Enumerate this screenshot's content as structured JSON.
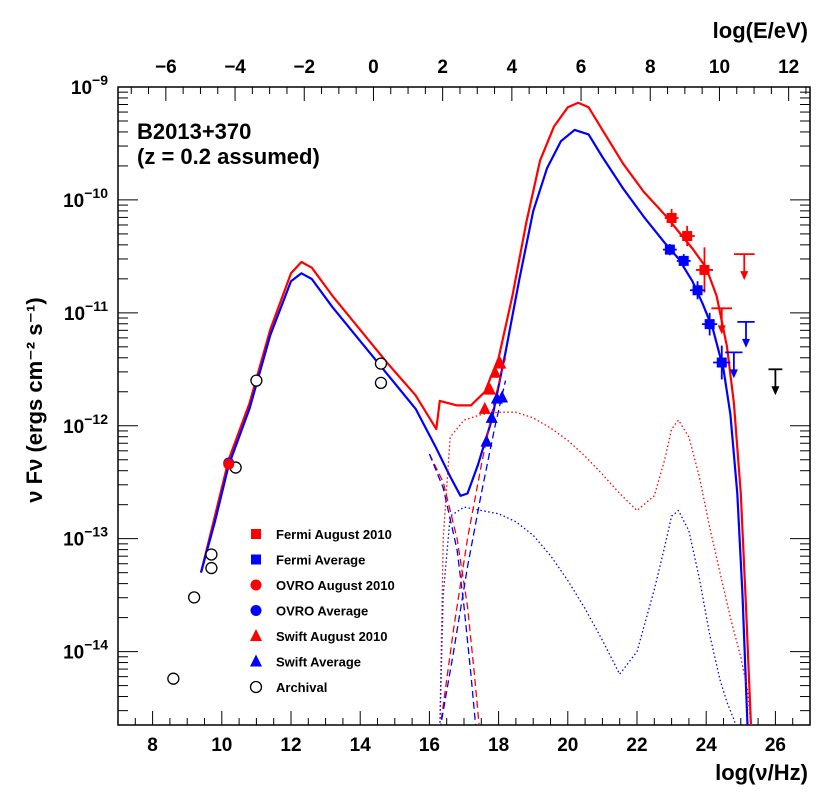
{
  "chart_data": {
    "type": "scatter",
    "annotation_lines": [
      "B2013+370",
      "(z = 0.2 assumed)"
    ],
    "xlabel": "log(ν/Hz)",
    "ylabel": "ν Fν (ergs cm⁻² s⁻¹)",
    "top_xlabel": "log(E/eV)",
    "xlim": [
      7,
      27
    ],
    "ylim_log10": [
      -14.65,
      -9.0
    ],
    "x_ticks": [
      8,
      10,
      12,
      14,
      16,
      18,
      20,
      22,
      24,
      26
    ],
    "y_ticks_log10": [
      -14,
      -13,
      -12,
      -11,
      -10,
      -9
    ],
    "top_ticks_logE": [
      -6,
      -4,
      -2,
      0,
      2,
      4,
      6,
      8,
      10,
      12
    ],
    "colors": {
      "august": "#ff0000",
      "average": "#0000ff",
      "archival": "#000000"
    },
    "legend": [
      {
        "label": "Fermi August 2010",
        "marker": "square",
        "color": "#ff0000"
      },
      {
        "label": "Fermi Average",
        "marker": "square",
        "color": "#0000ff"
      },
      {
        "label": "OVRO August 2010",
        "marker": "circle",
        "color": "#ff0000"
      },
      {
        "label": "OVRO Average",
        "marker": "circle",
        "color": "#0000ff"
      },
      {
        "label": "Swift August 2010",
        "marker": "triangle",
        "color": "#ff0000"
      },
      {
        "label": "Swift Average",
        "marker": "triangle",
        "color": "#0000ff"
      },
      {
        "label": "Archival",
        "marker": "open-circle",
        "color": "#000000"
      }
    ],
    "points": [
      {
        "series": "Archival",
        "x": 8.6,
        "y": -14.24
      },
      {
        "series": "Archival",
        "x": 9.2,
        "y": -13.52
      },
      {
        "series": "Archival",
        "x": 9.7,
        "y": -13.26
      },
      {
        "series": "Archival",
        "x": 9.7,
        "y": -13.14
      },
      {
        "series": "Archival",
        "x": 10.4,
        "y": -12.37
      },
      {
        "series": "Archival",
        "x": 11.0,
        "y": -11.6
      },
      {
        "series": "Archival",
        "x": 14.6,
        "y": -11.45
      },
      {
        "series": "Archival",
        "x": 14.6,
        "y": -11.62
      },
      {
        "series": "OVRO Average",
        "x": 10.2,
        "y": -12.33
      },
      {
        "series": "OVRO August 2010",
        "x": 10.2,
        "y": -12.34
      },
      {
        "series": "Swift August 2010",
        "x": 17.6,
        "y": -11.85
      },
      {
        "series": "Swift August 2010",
        "x": 17.75,
        "y": -11.68
      },
      {
        "series": "Swift August 2010",
        "x": 17.9,
        "y": -11.53
      },
      {
        "series": "Swift August 2010",
        "x": 18.05,
        "y": -11.45
      },
      {
        "series": "Swift Average",
        "x": 17.65,
        "y": -12.14
      },
      {
        "series": "Swift Average",
        "x": 17.8,
        "y": -11.93
      },
      {
        "series": "Swift Average",
        "x": 17.95,
        "y": -11.76
      },
      {
        "series": "Swift Average",
        "x": 18.1,
        "y": -11.75
      },
      {
        "series": "Fermi August 2010",
        "x": 23.0,
        "y": -10.16,
        "xerr": 0.2,
        "yerr": 0.08
      },
      {
        "series": "Fermi August 2010",
        "x": 23.45,
        "y": -10.32,
        "xerr": 0.22,
        "yerr": 0.09
      },
      {
        "series": "Fermi August 2010",
        "x": 23.95,
        "y": -10.62,
        "xerr": 0.25,
        "yerr": 0.2
      },
      {
        "series": "Fermi Average",
        "x": 22.95,
        "y": -10.44,
        "xerr": 0.2,
        "yerr": 0.05
      },
      {
        "series": "Fermi Average",
        "x": 23.35,
        "y": -10.54,
        "xerr": 0.2,
        "yerr": 0.06
      },
      {
        "series": "Fermi Average",
        "x": 23.75,
        "y": -10.8,
        "xerr": 0.22,
        "yerr": 0.08
      },
      {
        "series": "Fermi Average",
        "x": 24.1,
        "y": -11.1,
        "xerr": 0.22,
        "yerr": 0.1
      },
      {
        "series": "Fermi Average",
        "x": 24.45,
        "y": -11.44,
        "xerr": 0.25,
        "yerr": 0.15
      }
    ],
    "upper_limits": [
      {
        "series": "Fermi August 2010",
        "x": 24.45,
        "y": -10.96,
        "xerr": 0.3
      },
      {
        "series": "Fermi August 2010",
        "x": 25.1,
        "y": -10.48,
        "xerr": 0.3
      },
      {
        "series": "Fermi Average",
        "x": 24.8,
        "y": -11.35,
        "xerr": 0.25
      },
      {
        "series": "Fermi Average",
        "x": 25.15,
        "y": -11.08,
        "xerr": 0.25
      },
      {
        "series": "Archival",
        "x": 26.0,
        "y": -11.5,
        "xerr": 0.2
      }
    ],
    "curves": [
      {
        "name": "model-august-total",
        "color": "#ff0000",
        "style": "solid",
        "x": [
          9.4,
          9.8,
          10.2,
          10.8,
          11.4,
          12.0,
          12.3,
          12.6,
          13.2,
          14.0,
          14.8,
          15.6,
          16.2,
          16.3,
          16.8,
          17.2,
          17.6,
          18.0,
          18.4,
          18.8,
          19.2,
          19.6,
          20.0,
          20.3,
          20.6,
          21.0,
          21.6,
          22.2,
          22.8,
          23.2,
          23.6,
          24.0,
          24.3,
          24.6,
          24.8,
          25.0,
          25.15,
          25.3
        ],
        "y": [
          -13.3,
          -12.8,
          -12.3,
          -11.8,
          -11.15,
          -10.65,
          -10.55,
          -10.6,
          -10.85,
          -11.15,
          -11.45,
          -11.73,
          -12.03,
          -11.78,
          -11.82,
          -11.82,
          -11.7,
          -11.4,
          -10.85,
          -10.2,
          -9.65,
          -9.35,
          -9.18,
          -9.14,
          -9.18,
          -9.38,
          -9.68,
          -9.93,
          -10.13,
          -10.28,
          -10.43,
          -10.6,
          -10.85,
          -11.3,
          -11.8,
          -12.6,
          -13.6,
          -14.7
        ]
      },
      {
        "name": "model-average-total",
        "color": "#0000ff",
        "style": "solid",
        "x": [
          9.4,
          9.8,
          10.2,
          10.8,
          11.4,
          12.0,
          12.3,
          12.6,
          13.2,
          14.0,
          14.8,
          15.6,
          16.2,
          16.6,
          16.9,
          17.1,
          17.4,
          17.8,
          18.2,
          18.6,
          19.0,
          19.4,
          19.8,
          20.2,
          20.6,
          21.0,
          21.6,
          22.2,
          22.8,
          23.2,
          23.6,
          23.9,
          24.2,
          24.5,
          24.7,
          24.9,
          25.05,
          25.2
        ],
        "y": [
          -13.3,
          -12.85,
          -12.35,
          -11.85,
          -11.2,
          -10.72,
          -10.65,
          -10.7,
          -10.95,
          -11.25,
          -11.55,
          -11.85,
          -12.2,
          -12.45,
          -12.62,
          -12.6,
          -12.35,
          -11.95,
          -11.35,
          -10.7,
          -10.1,
          -9.72,
          -9.48,
          -9.38,
          -9.42,
          -9.62,
          -9.9,
          -10.15,
          -10.38,
          -10.52,
          -10.72,
          -10.92,
          -11.15,
          -11.5,
          -11.9,
          -12.6,
          -13.5,
          -14.7
        ]
      },
      {
        "name": "model-august-ssc",
        "color": "#ff0000",
        "style": "dotted",
        "x": [
          16.3,
          16.4,
          16.6,
          17.0,
          17.5,
          18.0,
          18.5,
          19.0,
          19.5,
          20.0,
          20.5,
          21.0,
          21.5,
          22.0,
          22.5,
          22.8,
          23.0,
          23.2,
          23.5,
          23.8,
          24.1,
          24.4,
          24.7,
          25.0,
          25.2,
          25.3
        ],
        "y": [
          -14.7,
          -13.0,
          -12.1,
          -11.95,
          -11.9,
          -11.88,
          -11.88,
          -11.93,
          -12.02,
          -12.13,
          -12.27,
          -12.43,
          -12.6,
          -12.75,
          -12.62,
          -12.3,
          -12.03,
          -11.95,
          -12.1,
          -12.45,
          -12.9,
          -13.3,
          -13.7,
          -14.05,
          -14.35,
          -14.7
        ]
      },
      {
        "name": "model-average-ssc",
        "color": "#0000ff",
        "style": "dotted",
        "x": [
          16.3,
          16.4,
          16.6,
          17.0,
          17.5,
          18.0,
          18.5,
          19.0,
          19.5,
          20.0,
          20.5,
          21.0,
          21.5,
          22.0,
          22.5,
          22.8,
          23.0,
          23.2,
          23.5,
          23.8,
          24.1,
          24.4,
          24.6,
          24.8,
          24.9
        ],
        "y": [
          -14.7,
          -13.5,
          -12.8,
          -12.72,
          -12.75,
          -12.78,
          -12.85,
          -12.97,
          -13.15,
          -13.37,
          -13.62,
          -13.9,
          -14.2,
          -14.0,
          -13.45,
          -13.07,
          -12.8,
          -12.75,
          -12.93,
          -13.35,
          -13.85,
          -14.25,
          -14.45,
          -14.6,
          -14.7
        ]
      },
      {
        "name": "model-august-sync-tail",
        "color": "#ff0000",
        "style": "dashed",
        "x": [
          16.0,
          16.4,
          16.8,
          17.1,
          17.3,
          17.45
        ],
        "y": [
          -12.25,
          -12.5,
          -13.0,
          -13.6,
          -14.2,
          -14.7
        ]
      },
      {
        "name": "model-average-sync-tail",
        "color": "#0000ff",
        "style": "dashed",
        "x": [
          16.0,
          16.4,
          16.8,
          17.0,
          17.2,
          17.35
        ],
        "y": [
          -12.25,
          -12.55,
          -13.1,
          -13.6,
          -14.2,
          -14.7
        ]
      },
      {
        "name": "model-august-ec-rise",
        "color": "#ff0000",
        "style": "dashed",
        "x": [
          16.3,
          16.7,
          17.1,
          17.5,
          17.9,
          18.2
        ],
        "y": [
          -14.7,
          -13.8,
          -13.0,
          -12.35,
          -11.75,
          -11.4
        ]
      },
      {
        "name": "model-average-ec-rise",
        "color": "#0000ff",
        "style": "dashed",
        "x": [
          16.3,
          16.7,
          17.1,
          17.5,
          17.9,
          18.2
        ],
        "y": [
          -14.7,
          -14.0,
          -13.25,
          -12.6,
          -12.0,
          -11.6
        ]
      }
    ]
  }
}
